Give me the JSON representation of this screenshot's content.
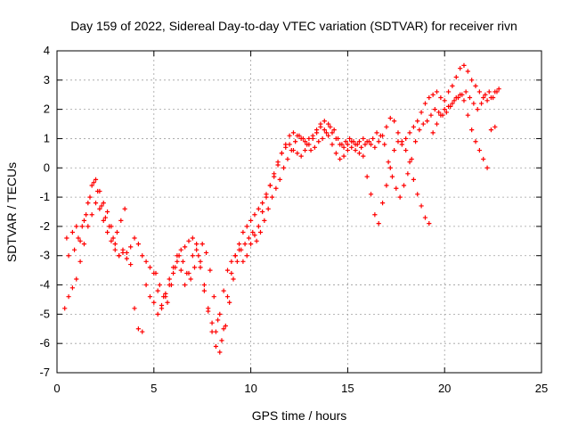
{
  "chart_data": {
    "type": "scatter",
    "title": "Day 159 of 2022, Sidereal Day-to-day VTEC variation (SDTVAR) for receiver rivn",
    "xlabel": "GPS time / hours",
    "ylabel": "SDTVAR / TECUs",
    "xlim": [
      0,
      25
    ],
    "ylim": [
      -7,
      4
    ],
    "xticks": [
      "0",
      "5",
      "10",
      "15",
      "20",
      "25"
    ],
    "yticks": [
      "-7",
      "-6",
      "-5",
      "-4",
      "-3",
      "-2",
      "-1",
      "0",
      "1",
      "2",
      "3",
      "4"
    ],
    "grid": true,
    "marker": "+",
    "color": "#ff0000",
    "series": [
      {
        "x": [
          0.5,
          0.8,
          1.0,
          1.2,
          1.4,
          1.6,
          1.8,
          2.0,
          2.2,
          2.4,
          2.6,
          2.8,
          3.0,
          3.2,
          3.4,
          3.6,
          3.8,
          4.0,
          4.2,
          4.4,
          4.6,
          4.8,
          5.0,
          5.2,
          5.4,
          5.6,
          5.8,
          6.0,
          6.2,
          6.4,
          6.6,
          6.8,
          7.0,
          7.2,
          7.4,
          7.6,
          7.8,
          8.0,
          8.2,
          8.4,
          8.6,
          8.8,
          9.0,
          9.2,
          9.4,
          9.6,
          9.8,
          10.0,
          10.2,
          10.4,
          10.6,
          10.8,
          11.0,
          11.2,
          11.4,
          11.6,
          11.8,
          12.0,
          12.2,
          12.4,
          12.6,
          12.8,
          13.0,
          13.2,
          13.4,
          13.6,
          13.8,
          14.0,
          14.2,
          14.4,
          14.6,
          14.8,
          15.0,
          15.2,
          15.4,
          15.6,
          15.8,
          16.0,
          16.2,
          16.4,
          16.6,
          16.8,
          17.0,
          17.2,
          17.4,
          17.6,
          17.8,
          18.0,
          18.2,
          18.4,
          18.6,
          18.8,
          19.0,
          19.2,
          19.4,
          19.6,
          19.8,
          20.0,
          20.2,
          20.4,
          20.6,
          20.8,
          21.0,
          21.2,
          21.4,
          21.6,
          21.8,
          22.0,
          22.2,
          22.4,
          22.6,
          22.8
        ],
        "y": [
          -2.4,
          -2.2,
          -2.0,
          -2.5,
          -1.8,
          -1.2,
          -0.6,
          -0.4,
          -0.8,
          -1.2,
          -1.5,
          -2.0,
          -2.6,
          -3.0,
          -2.8,
          -2.9,
          -2.7,
          -2.4,
          -2.6,
          -3.0,
          -3.2,
          -3.4,
          -3.6,
          -4.2,
          -4.8,
          -4.4,
          -3.8,
          -3.4,
          -3.0,
          -2.8,
          -2.7,
          -2.5,
          -2.4,
          -2.6,
          -3.2,
          -4.0,
          -4.8,
          -5.6,
          -6.1,
          -6.3,
          -5.5,
          -4.4,
          -3.6,
          -3.0,
          -2.6,
          -2.2,
          -2.0,
          -1.8,
          -1.6,
          -1.4,
          -1.2,
          -0.9,
          -0.6,
          -0.3,
          0.1,
          0.5,
          0.8,
          1.1,
          1.2,
          1.1,
          1.0,
          0.9,
          1.0,
          1.1,
          1.3,
          1.5,
          1.6,
          1.5,
          1.2,
          1.0,
          0.8,
          0.7,
          0.8,
          0.9,
          0.8,
          0.9,
          1.0,
          0.9,
          0.8,
          0.7,
          0.9,
          1.1,
          1.4,
          1.7,
          1.6,
          1.2,
          0.9,
          1.0,
          1.2,
          1.4,
          1.6,
          1.9,
          2.2,
          2.4,
          2.5,
          2.6,
          2.4,
          2.3,
          2.6,
          2.8,
          3.1,
          3.4,
          3.5,
          3.3,
          3.0,
          2.8,
          2.6,
          2.4,
          2.3,
          2.4,
          2.6,
          2.7
        ]
      },
      {
        "x": [
          0.4,
          0.6,
          0.8,
          1.0,
          1.2,
          1.4,
          1.6,
          1.8,
          2.0,
          2.2,
          2.4,
          2.6,
          2.8,
          3.0,
          3.2,
          3.4,
          3.6,
          3.8,
          4.0,
          4.2,
          4.4,
          4.6,
          4.8,
          5.0,
          5.2,
          5.4,
          5.6,
          5.8,
          6.0,
          6.2,
          6.4,
          6.6,
          6.8,
          7.0,
          7.2,
          7.4,
          7.6,
          7.8,
          8.0,
          8.2,
          8.4,
          8.6,
          8.8,
          9.0,
          9.2,
          9.4,
          9.6,
          9.8,
          10.0,
          10.2,
          10.4,
          10.6,
          10.8,
          11.0,
          11.2,
          11.4,
          11.6,
          11.8,
          12.0,
          12.2,
          12.4,
          12.6,
          12.8,
          13.0,
          13.2,
          13.4,
          13.6,
          13.8,
          14.0,
          14.2,
          14.4,
          14.6,
          14.8,
          15.0,
          15.2,
          15.4,
          15.6,
          15.8,
          16.0,
          16.2,
          16.4,
          16.6,
          16.8,
          17.0,
          17.2,
          17.4,
          17.6,
          17.8,
          18.0,
          18.2,
          18.4,
          18.6,
          18.8,
          19.0,
          19.2,
          19.4,
          19.6,
          19.8,
          20.0,
          20.2,
          20.4,
          20.6,
          20.8,
          21.0,
          21.2,
          21.4,
          21.6,
          21.8,
          22.0,
          22.2,
          22.4,
          22.6
        ],
        "y": [
          -4.8,
          -4.4,
          -4.1,
          -3.8,
          -3.2,
          -2.6,
          -2.0,
          -1.6,
          -1.2,
          -1.4,
          -1.8,
          -2.2,
          -2.5,
          -2.8,
          -3.0,
          -2.9,
          -3.1,
          -3.3,
          -4.8,
          -5.5,
          -5.6,
          -4.0,
          -4.4,
          -4.6,
          -5.0,
          -4.7,
          -4.3,
          -4.0,
          -3.6,
          -3.2,
          -3.5,
          -4.0,
          -3.6,
          -3.0,
          -2.8,
          -3.4,
          -4.2,
          -4.9,
          -5.3,
          -5.6,
          -5.0,
          -4.2,
          -3.5,
          -3.2,
          -3.0,
          -2.8,
          -3.2,
          -3.0,
          -2.6,
          -2.3,
          -2.0,
          -1.5,
          -1.0,
          -0.6,
          -0.2,
          0.2,
          0.5,
          0.7,
          0.8,
          0.6,
          0.5,
          0.4,
          0.6,
          0.8,
          1.0,
          1.2,
          1.4,
          1.3,
          1.1,
          0.8,
          0.5,
          0.3,
          0.4,
          0.6,
          0.7,
          0.6,
          0.5,
          0.4,
          -0.3,
          -0.9,
          -1.6,
          -1.9,
          -1.2,
          -0.6,
          0.0,
          0.6,
          0.9,
          0.8,
          0.6,
          0.2,
          -0.4,
          -0.9,
          -1.3,
          -1.7,
          -1.9,
          1.2,
          1.5,
          1.8,
          2.0,
          2.1,
          2.2,
          2.4,
          2.5,
          2.3,
          1.8,
          1.3,
          0.9,
          0.6,
          0.3,
          0.0,
          1.3,
          1.4
        ]
      },
      {
        "x": [
          0.6,
          0.9,
          1.1,
          1.3,
          1.5,
          1.7,
          1.9,
          2.1,
          2.3,
          2.5,
          2.7,
          2.9,
          3.1,
          3.3,
          3.5,
          5.1,
          5.3,
          5.5,
          5.7,
          5.9,
          6.1,
          6.3,
          6.5,
          6.7,
          6.9,
          7.1,
          7.3,
          7.5,
          7.7,
          7.9,
          8.1,
          8.3,
          8.5,
          8.7,
          8.9,
          9.1,
          9.3,
          9.5,
          9.7,
          9.9,
          10.1,
          10.3,
          10.5,
          10.7,
          10.9,
          11.1,
          11.3,
          11.5,
          11.7,
          11.9,
          12.1,
          12.3,
          12.5,
          12.7,
          12.9,
          13.1,
          13.3,
          13.5,
          13.7,
          13.9,
          14.1,
          14.3,
          14.5,
          14.7,
          14.9,
          15.1,
          15.3,
          15.5,
          15.7,
          15.9,
          16.1,
          16.3,
          16.5,
          16.7,
          16.9,
          17.1,
          17.3,
          17.5,
          17.7,
          17.9,
          18.1,
          18.3,
          18.5,
          18.7,
          18.9,
          19.1,
          19.3,
          19.5,
          19.7,
          19.9,
          20.1,
          20.3,
          20.5,
          20.7,
          20.9,
          21.1,
          21.3,
          21.5,
          21.7,
          21.9,
          22.1,
          22.3,
          22.5,
          22.7
        ],
        "y": [
          -3.0,
          -2.8,
          -2.4,
          -2.0,
          -1.6,
          -1.0,
          -0.5,
          -0.8,
          -1.3,
          -1.7,
          -2.0,
          -2.4,
          -2.2,
          -1.8,
          -1.4,
          -3.6,
          -4.0,
          -4.4,
          -4.6,
          -4.0,
          -3.4,
          -3.0,
          -3.2,
          -3.6,
          -3.8,
          -3.4,
          -3.0,
          -2.6,
          -2.9,
          -3.5,
          -4.4,
          -5.2,
          -5.9,
          -5.4,
          -4.6,
          -3.8,
          -3.2,
          -2.8,
          -2.6,
          -2.4,
          -2.2,
          -2.5,
          -2.2,
          -1.8,
          -1.4,
          -1.0,
          -0.7,
          -0.4,
          0.0,
          0.3,
          0.6,
          0.9,
          1.1,
          1.0,
          0.8,
          0.6,
          0.7,
          0.9,
          1.0,
          1.2,
          1.4,
          1.3,
          1.0,
          0.8,
          0.9,
          1.0,
          0.9,
          0.8,
          0.7,
          0.8,
          0.9,
          1.0,
          1.2,
          1.1,
          0.8,
          0.2,
          -0.3,
          -0.7,
          -1.0,
          -0.6,
          -0.2,
          0.3,
          0.9,
          1.3,
          1.5,
          1.6,
          1.8,
          2.0,
          1.9,
          1.8,
          1.9,
          2.1,
          2.3,
          2.4,
          2.5,
          2.6,
          2.4,
          2.2,
          2.0,
          2.2,
          2.5,
          2.6,
          2.4,
          2.6
        ]
      }
    ]
  }
}
